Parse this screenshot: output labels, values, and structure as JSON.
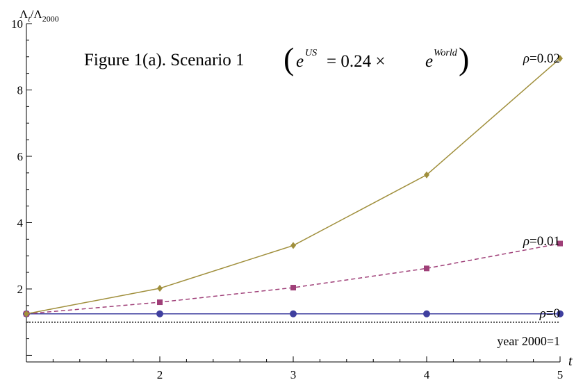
{
  "chart_data": {
    "type": "line",
    "title": {
      "prefix": "Figure 1(a). Scenario 1",
      "lhs_base": "e",
      "lhs_sup": "US",
      "eq": "= 0.24 ×",
      "rhs_base": "e",
      "rhs_sup": "World"
    },
    "ylabel": {
      "base": "Λ",
      "sub1": "t",
      "slash": "/",
      "base2": "Λ",
      "sub2": "2000"
    },
    "xlabel": "t",
    "xlim": [
      1,
      5
    ],
    "ylim": [
      -0.2,
      10
    ],
    "x_ticks": [
      2,
      3,
      4,
      5
    ],
    "y_ticks": [
      2,
      4,
      6,
      8,
      10
    ],
    "x": [
      1,
      2,
      3,
      4,
      5
    ],
    "series": [
      {
        "name": "ρ=0",
        "values": [
          1.25,
          1.25,
          1.25,
          1.25,
          1.25
        ],
        "color": "#3f3f9f",
        "dash": "",
        "marker": "circle"
      },
      {
        "name": "ρ=0.01",
        "values": [
          1.25,
          1.6,
          2.04,
          2.62,
          3.37
        ],
        "color": "#9f3f78",
        "dash": "6,4",
        "marker": "square"
      },
      {
        "name": "ρ=0.02",
        "values": [
          1.25,
          2.02,
          3.31,
          5.44,
          8.95
        ],
        "color": "#a08f3c",
        "dash": "",
        "marker": "diamond"
      }
    ],
    "reference_line": {
      "value": 1,
      "label": "year 2000=1",
      "dash": "2,2",
      "color": "#000000"
    }
  }
}
